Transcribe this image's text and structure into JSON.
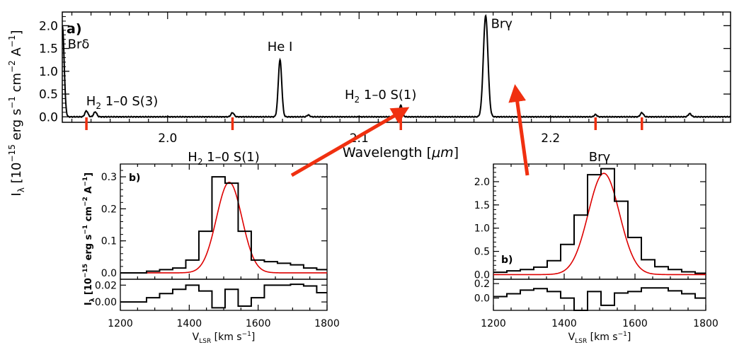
{
  "colors": {
    "data": "#000000",
    "fit": "#dd0000",
    "marker": "#f03010",
    "axes": "#000000"
  },
  "chart_data": [
    {
      "id": "a",
      "type": "line",
      "panel_label": "a)",
      "xlabel_prefix": "Wavelength [",
      "xlabel_unit": "μm",
      "xlabel_suffix": "]",
      "ylabel_prefix": "I",
      "ylabel_sub": "λ",
      "ylabel_mid": " [10",
      "ylabel_exp": "−15",
      "ylabel_rest": " erg s",
      "ylabel_exp2": "−1",
      "ylabel_rest2": " cm",
      "ylabel_exp3": "−2",
      "ylabel_rest3": " A",
      "ylabel_exp4": "−1",
      "ylabel_end": "]",
      "xlim": [
        1.945,
        2.294
      ],
      "ylim": [
        -0.12,
        2.3
      ],
      "x_ticks": [
        {
          "value": 2.0,
          "label": "2.0"
        },
        {
          "value": 2.1,
          "label": "2.1"
        },
        {
          "value": 2.2,
          "label": "2.2"
        }
      ],
      "y_ticks": [
        {
          "value": 0.0,
          "label": "0.0"
        },
        {
          "value": 0.5,
          "label": "0.5"
        },
        {
          "value": 1.0,
          "label": "1.0"
        },
        {
          "value": 1.5,
          "label": "1.5"
        },
        {
          "value": 2.0,
          "label": "2.0"
        }
      ],
      "continuum": 0.0,
      "lines": [
        {
          "center": 1.9445,
          "amp": 0.1,
          "width": 0.0009
        },
        {
          "center": 1.9451,
          "amp": 1.9,
          "width": 0.0009
        },
        {
          "center": 1.9576,
          "amp": 0.13,
          "width": 0.0008
        },
        {
          "center": 1.9622,
          "amp": 0.11,
          "width": 0.0008
        },
        {
          "center": 2.0339,
          "amp": 0.09,
          "width": 0.0008
        },
        {
          "center": 2.0587,
          "amp": 1.25,
          "width": 0.0009
        },
        {
          "center": 2.0735,
          "amp": 0.04,
          "width": 0.0007
        },
        {
          "center": 2.1218,
          "amp": 0.25,
          "width": 0.0008
        },
        {
          "center": 2.1661,
          "amp": 2.22,
          "width": 0.0012
        },
        {
          "center": 2.2235,
          "amp": 0.05,
          "width": 0.0007
        },
        {
          "center": 2.2477,
          "amp": 0.09,
          "width": 0.0008
        },
        {
          "center": 2.2727,
          "amp": 0.07,
          "width": 0.0008
        }
      ],
      "markers": [
        1.9576,
        2.0339,
        2.1218,
        2.2235,
        2.2477
      ],
      "annotations": [
        {
          "id": "br-delta",
          "text": "Brδ",
          "x": 1.9535,
          "y": 1.5
        },
        {
          "id": "he-i",
          "text": "He I",
          "x": 2.0587,
          "y": 1.45
        },
        {
          "id": "br-gamma",
          "text": "Brγ",
          "x": 2.1745,
          "y": 1.95
        }
      ],
      "annotations_h2": [
        {
          "id": "h2-s3",
          "prefix": "H",
          "sub": "2",
          "rest": " 1–0 S(3)",
          "x": 1.9575,
          "y": 0.25
        },
        {
          "id": "h2-s1",
          "prefix": "H",
          "sub": "2",
          "rest": " 1–0 S(1)",
          "x": 2.0925,
          "y": 0.39
        }
      ]
    },
    {
      "id": "b-h2",
      "type": "line",
      "title_prefix": "H",
      "title_sub": "2",
      "title_rest": " 1–0 S(1)",
      "panel_label": "b)",
      "xlabel_prefix": "V",
      "xlabel_sub": "LSR",
      "xlabel_rest": " [km s",
      "xlabel_exp": "−1",
      "xlabel_end": "]",
      "ylabel_prefix": "I",
      "ylabel_sub": "λ",
      "ylabel_mid": " [10",
      "ylabel_exp": "−15",
      "ylabel_rest": " erg s",
      "ylabel_exp2": "−1",
      "ylabel_rest2": " cm",
      "ylabel_exp3": "−2",
      "ylabel_rest3": " A",
      "ylabel_exp4": "−1",
      "ylabel_end": "]",
      "xlim": [
        1200,
        1800
      ],
      "ylim": [
        -0.02,
        0.34
      ],
      "resid_ylim": [
        -0.01,
        0.027
      ],
      "x_ticks": [
        {
          "value": 1200,
          "label": "1200"
        },
        {
          "value": 1400,
          "label": "1400"
        },
        {
          "value": 1600,
          "label": "1600"
        },
        {
          "value": 1800,
          "label": "1800"
        }
      ],
      "y_ticks": [
        {
          "value": 0.0,
          "label": "0.0"
        },
        {
          "value": 0.1,
          "label": "0.1"
        },
        {
          "value": 0.2,
          "label": "0.2"
        },
        {
          "value": 0.3,
          "label": "0.3"
        }
      ],
      "resid_ticks": [
        {
          "value": 0.0,
          "label": "0.00"
        },
        {
          "value": 0.02,
          "label": "0.02"
        }
      ],
      "bin_edges": [
        1200,
        1238,
        1276,
        1314,
        1352,
        1390,
        1428,
        1466,
        1504,
        1542,
        1580,
        1618,
        1656,
        1694,
        1732,
        1770,
        1800
      ],
      "data_values": [
        0.0,
        0.0,
        0.005,
        0.01,
        0.015,
        0.04,
        0.13,
        0.3,
        0.28,
        0.13,
        0.04,
        0.035,
        0.03,
        0.025,
        0.015,
        0.01
      ],
      "residual_values": [
        0.0,
        0.0,
        0.005,
        0.01,
        0.015,
        0.02,
        0.013,
        -0.007,
        0.015,
        -0.005,
        0.005,
        0.02,
        0.02,
        0.021,
        0.019,
        0.011
      ],
      "fit": {
        "center": 1516,
        "amp": 0.283,
        "sigma": 37
      }
    },
    {
      "id": "b-brg",
      "type": "line",
      "title_text": "Brγ",
      "panel_label": "b)",
      "xlabel_prefix": "V",
      "xlabel_sub": "LSR",
      "xlabel_rest": " [km s",
      "xlabel_exp": "−1",
      "xlabel_end": "]",
      "xlim": [
        1200,
        1800
      ],
      "ylim": [
        -0.1,
        2.38
      ],
      "resid_ylim": [
        -0.17,
        0.26
      ],
      "x_ticks": [
        {
          "value": 1200,
          "label": "1200"
        },
        {
          "value": 1400,
          "label": "1400"
        },
        {
          "value": 1600,
          "label": "1600"
        },
        {
          "value": 1800,
          "label": "1800"
        }
      ],
      "y_ticks": [
        {
          "value": 0.0,
          "label": "0.0"
        },
        {
          "value": 0.5,
          "label": "0.5"
        },
        {
          "value": 1.0,
          "label": "1.0"
        },
        {
          "value": 1.5,
          "label": "1.5"
        },
        {
          "value": 2.0,
          "label": "2.0"
        }
      ],
      "resid_ticks": [
        {
          "value": 0.0,
          "label": "0.0"
        },
        {
          "value": 0.2,
          "label": "0.2"
        }
      ],
      "bin_edges": [
        1200,
        1238,
        1276,
        1314,
        1352,
        1390,
        1428,
        1466,
        1504,
        1542,
        1580,
        1618,
        1656,
        1694,
        1732,
        1770,
        1800
      ],
      "data_values": [
        0.05,
        0.08,
        0.11,
        0.16,
        0.3,
        0.65,
        1.28,
        2.15,
        2.28,
        1.58,
        0.8,
        0.32,
        0.17,
        0.11,
        0.06,
        0.03
      ],
      "residual_values": [
        0.02,
        0.06,
        0.11,
        0.13,
        0.09,
        0.0,
        -0.17,
        0.09,
        -0.1,
        0.07,
        0.09,
        0.14,
        0.14,
        0.1,
        0.06,
        0.0
      ],
      "fit": {
        "center": 1512,
        "amp": 2.18,
        "sigma": 44
      }
    }
  ],
  "arrows": [
    {
      "id": "arrow-to-h2-s1",
      "from_panel": "b-h2",
      "to_feature": "h2-s1"
    },
    {
      "id": "arrow-to-br-gamma",
      "from_panel": "b-brg",
      "to_feature": "br-gamma"
    }
  ]
}
